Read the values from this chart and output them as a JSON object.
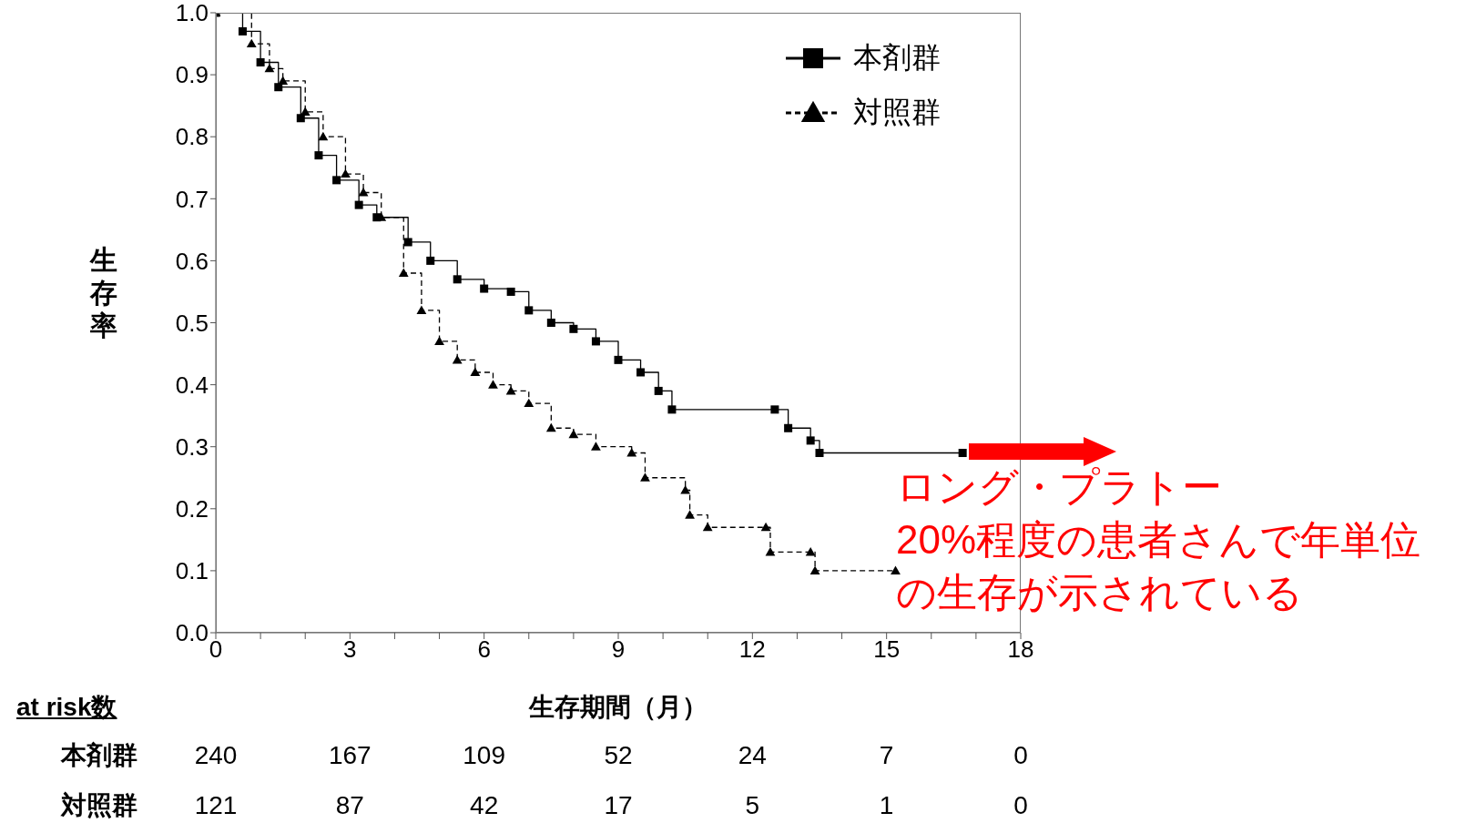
{
  "chart_data": {
    "type": "step",
    "xlabel": "生存期間（月）",
    "ylabel": "生存率",
    "xlim": [
      0,
      18
    ],
    "xticks": [
      0,
      {
        "value": 1,
        "label": null
      },
      {
        "value": 2,
        "label": null
      },
      3,
      {
        "value": 4,
        "label": null
      },
      {
        "value": 5,
        "label": null
      },
      6,
      {
        "value": 7,
        "label": null
      },
      {
        "value": 8,
        "label": null
      },
      9,
      {
        "value": 10,
        "label": null
      },
      {
        "value": 11,
        "label": null
      },
      12,
      {
        "value": 13,
        "label": null
      },
      {
        "value": 14,
        "label": null
      },
      15,
      {
        "value": 16,
        "label": null
      },
      {
        "value": 17,
        "label": null
      },
      18
    ],
    "ylim": [
      0,
      1
    ],
    "yticks": [
      {
        "value": 0,
        "label": "0.0"
      },
      0.1,
      0.2,
      0.3,
      0.4,
      0.5,
      0.6,
      0.7,
      0.8,
      0.9,
      {
        "value": 1,
        "label": "1.0"
      }
    ],
    "legend": "top right",
    "series": [
      {
        "name": "本剤群",
        "color": "#000000",
        "marker": "square",
        "line_style": "solid",
        "x": [
          0,
          0.6,
          1.0,
          1.4,
          1.9,
          2.3,
          2.7,
          3.2,
          3.6,
          4.3,
          4.8,
          5.4,
          6.0,
          6.6,
          7.0,
          7.5,
          8.0,
          8.5,
          9.0,
          9.5,
          9.9,
          10.2,
          12.5,
          12.8,
          13.3,
          13.5,
          16.7
        ],
        "values": [
          1.0,
          0.97,
          0.92,
          0.88,
          0.83,
          0.77,
          0.73,
          0.69,
          0.67,
          0.63,
          0.6,
          0.57,
          0.555,
          0.55,
          0.52,
          0.5,
          0.49,
          0.47,
          0.44,
          0.42,
          0.39,
          0.36,
          0.36,
          0.33,
          0.31,
          0.29,
          0.29
        ]
      },
      {
        "name": "対照群",
        "color": "#000000",
        "marker": "triangle",
        "line_style": "dashed",
        "x": [
          0,
          0.8,
          1.2,
          1.5,
          2.0,
          2.4,
          2.9,
          3.3,
          3.7,
          4.2,
          4.6,
          5.0,
          5.4,
          5.8,
          6.2,
          6.6,
          7.0,
          7.5,
          8.0,
          8.5,
          9.3,
          9.6,
          10.5,
          10.6,
          11.0,
          12.3,
          12.4,
          13.3,
          13.4,
          15.2
        ],
        "values": [
          1.0,
          0.95,
          0.91,
          0.89,
          0.84,
          0.8,
          0.74,
          0.71,
          0.67,
          0.58,
          0.52,
          0.47,
          0.44,
          0.42,
          0.4,
          0.39,
          0.37,
          0.33,
          0.32,
          0.3,
          0.29,
          0.25,
          0.23,
          0.19,
          0.17,
          0.17,
          0.13,
          0.13,
          0.1,
          0.1
        ]
      }
    ],
    "annotations": [
      "at risk数",
      "本剤群",
      "240",
      "167",
      "109",
      "52",
      "24",
      "7",
      "0",
      "対照群",
      "121",
      "87",
      "42",
      "17",
      "5",
      "1",
      "0",
      "ロング・プラトー",
      "20%程度の患者さんで年単位の生存が示されている"
    ]
  }
}
